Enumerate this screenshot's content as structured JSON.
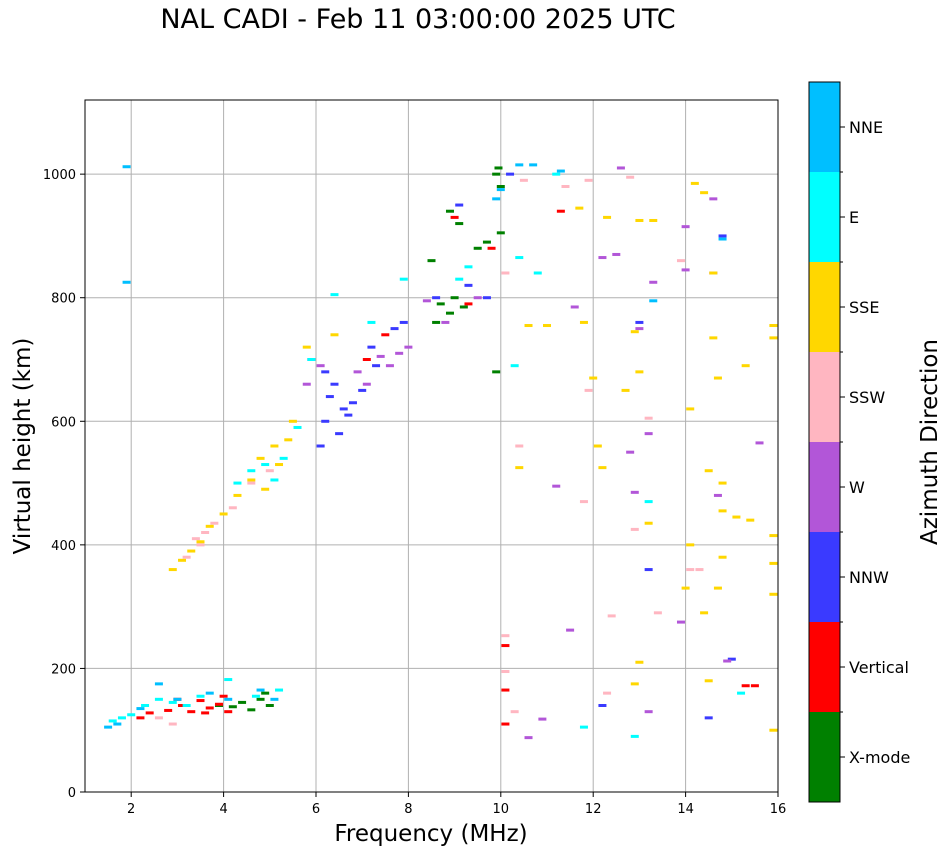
{
  "chart_data": {
    "type": "scatter",
    "title": "NAL CADI - Feb 11 03:00:00 2025 UTC",
    "xlabel": "Frequency (MHz)",
    "ylabel": "Virtual height (km)",
    "xlim": [
      1,
      16
    ],
    "ylim": [
      0,
      1120
    ],
    "xticks": [
      2,
      4,
      6,
      8,
      10,
      12,
      14,
      16
    ],
    "yticks": [
      0,
      200,
      400,
      600,
      800,
      1000
    ],
    "grid": true,
    "colorbar": {
      "label": "Azimuth Direction",
      "categories": [
        {
          "name": "X-mode",
          "color": "#008000"
        },
        {
          "name": "Vertical",
          "color": "#ff0000"
        },
        {
          "name": "NNW",
          "color": "#3a3aff"
        },
        {
          "name": "W",
          "color": "#b256d8"
        },
        {
          "name": "SSW",
          "color": "#ffb6c1"
        },
        {
          "name": "SSE",
          "color": "#ffd700"
        },
        {
          "name": "E",
          "color": "#00ffff"
        },
        {
          "name": "NNE",
          "color": "#00bfff"
        }
      ]
    },
    "series": [
      {
        "name": "X-mode",
        "points": [
          [
            3.9,
            140
          ],
          [
            4.2,
            138
          ],
          [
            4.4,
            145
          ],
          [
            4.6,
            133
          ],
          [
            4.8,
            150
          ],
          [
            5.0,
            140
          ],
          [
            4.9,
            160
          ],
          [
            8.7,
            790
          ],
          [
            8.9,
            775
          ],
          [
            9.0,
            800
          ],
          [
            9.2,
            785
          ],
          [
            8.6,
            760
          ],
          [
            9.5,
            880
          ],
          [
            8.9,
            940
          ],
          [
            9.1,
            920
          ],
          [
            8.5,
            860
          ],
          [
            9.9,
            1000
          ],
          [
            10.0,
            980
          ],
          [
            9.95,
            1010
          ],
          [
            10.0,
            905
          ],
          [
            9.9,
            680
          ],
          [
            9.7,
            890
          ]
        ]
      },
      {
        "name": "Vertical",
        "points": [
          [
            2.4,
            128
          ],
          [
            2.8,
            132
          ],
          [
            3.1,
            140
          ],
          [
            3.3,
            130
          ],
          [
            3.5,
            148
          ],
          [
            3.7,
            136
          ],
          [
            3.9,
            142
          ],
          [
            4.1,
            130
          ],
          [
            3.0,
            150
          ],
          [
            3.6,
            128
          ],
          [
            2.2,
            120
          ],
          [
            4.0,
            155
          ],
          [
            7.5,
            740
          ],
          [
            7.1,
            700
          ],
          [
            9.3,
            790
          ],
          [
            9.0,
            930
          ],
          [
            10.1,
            237
          ],
          [
            10.1,
            165
          ],
          [
            10.1,
            110
          ],
          [
            15.3,
            172
          ],
          [
            15.5,
            172
          ],
          [
            11.3,
            940
          ],
          [
            9.8,
            880
          ]
        ]
      },
      {
        "name": "NNW",
        "points": [
          [
            6.2,
            600
          ],
          [
            6.3,
            640
          ],
          [
            6.5,
            580
          ],
          [
            6.4,
            660
          ],
          [
            6.6,
            620
          ],
          [
            6.2,
            680
          ],
          [
            6.8,
            630
          ],
          [
            6.1,
            560
          ],
          [
            7.0,
            650
          ],
          [
            7.3,
            690
          ],
          [
            7.2,
            720
          ],
          [
            7.7,
            750
          ],
          [
            7.9,
            760
          ],
          [
            8.6,
            800
          ],
          [
            9.3,
            820
          ],
          [
            10.2,
            1000
          ],
          [
            5.9,
            700
          ],
          [
            6.7,
            610
          ],
          [
            9.1,
            950
          ],
          [
            13.0,
            760
          ],
          [
            14.8,
            900
          ],
          [
            13.2,
            360
          ],
          [
            14.5,
            120
          ],
          [
            12.2,
            140
          ],
          [
            15.0,
            215
          ],
          [
            9.7,
            800
          ]
        ]
      },
      {
        "name": "W",
        "points": [
          [
            5.8,
            660
          ],
          [
            6.1,
            690
          ],
          [
            6.9,
            680
          ],
          [
            7.1,
            660
          ],
          [
            7.4,
            705
          ],
          [
            7.6,
            690
          ],
          [
            7.8,
            710
          ],
          [
            8.0,
            720
          ],
          [
            8.4,
            795
          ],
          [
            8.8,
            760
          ],
          [
            9.5,
            800
          ],
          [
            12.6,
            1010
          ],
          [
            12.5,
            870
          ],
          [
            13.0,
            750
          ],
          [
            14.0,
            915
          ],
          [
            14.0,
            845
          ],
          [
            14.6,
            960
          ],
          [
            14.6,
            840
          ],
          [
            13.2,
            580
          ],
          [
            12.9,
            485
          ],
          [
            15.6,
            565
          ],
          [
            14.7,
            480
          ],
          [
            13.2,
            130
          ],
          [
            11.5,
            262
          ],
          [
            13.9,
            275
          ],
          [
            10.6,
            88
          ],
          [
            10.9,
            118
          ],
          [
            12.8,
            550
          ],
          [
            11.2,
            495
          ],
          [
            11.6,
            785
          ],
          [
            12.2,
            865
          ],
          [
            14.9,
            212
          ],
          [
            13.3,
            825
          ]
        ]
      },
      {
        "name": "SSW",
        "points": [
          [
            2.6,
            120
          ],
          [
            2.9,
            110
          ],
          [
            3.2,
            380
          ],
          [
            3.4,
            410
          ],
          [
            3.6,
            420
          ],
          [
            3.8,
            435
          ],
          [
            4.2,
            460
          ],
          [
            4.6,
            500
          ],
          [
            5.0,
            520
          ],
          [
            3.5,
            400
          ],
          [
            11.4,
            980
          ],
          [
            12.8,
            995
          ],
          [
            13.9,
            860
          ],
          [
            10.1,
            840
          ],
          [
            10.5,
            990
          ],
          [
            11.9,
            990
          ],
          [
            12.4,
            285
          ],
          [
            12.3,
            160
          ],
          [
            13.4,
            290
          ],
          [
            12.9,
            425
          ],
          [
            13.2,
            605
          ],
          [
            10.4,
            560
          ],
          [
            11.8,
            470
          ],
          [
            10.1,
            253
          ],
          [
            10.1,
            195
          ],
          [
            10.3,
            130
          ],
          [
            14.1,
            360
          ],
          [
            14.3,
            360
          ],
          [
            11.9,
            650
          ]
        ]
      },
      {
        "name": "SSE",
        "points": [
          [
            2.9,
            360
          ],
          [
            3.1,
            375
          ],
          [
            3.3,
            390
          ],
          [
            3.5,
            405
          ],
          [
            3.7,
            430
          ],
          [
            4.0,
            450
          ],
          [
            4.3,
            480
          ],
          [
            4.6,
            505
          ],
          [
            4.9,
            490
          ],
          [
            5.2,
            530
          ],
          [
            5.4,
            570
          ],
          [
            5.5,
            600
          ],
          [
            4.8,
            540
          ],
          [
            5.1,
            560
          ],
          [
            5.8,
            720
          ],
          [
            6.4,
            740
          ],
          [
            10.6,
            755
          ],
          [
            11.0,
            755
          ],
          [
            11.8,
            760
          ],
          [
            12.9,
            745
          ],
          [
            13.0,
            925
          ],
          [
            13.3,
            925
          ],
          [
            12.3,
            930
          ],
          [
            14.2,
            985
          ],
          [
            14.4,
            970
          ],
          [
            14.6,
            840
          ],
          [
            14.6,
            735
          ],
          [
            14.7,
            670
          ],
          [
            14.1,
            620
          ],
          [
            14.5,
            520
          ],
          [
            14.8,
            500
          ],
          [
            14.8,
            455
          ],
          [
            15.1,
            445
          ],
          [
            15.4,
            440
          ],
          [
            15.9,
            415
          ],
          [
            15.9,
            370
          ],
          [
            15.9,
            320
          ],
          [
            14.8,
            380
          ],
          [
            14.1,
            400
          ],
          [
            14.0,
            330
          ],
          [
            14.4,
            290
          ],
          [
            14.7,
            330
          ],
          [
            13.0,
            680
          ],
          [
            12.7,
            650
          ],
          [
            12.1,
            560
          ],
          [
            12.2,
            525
          ],
          [
            13.2,
            435
          ],
          [
            13.0,
            210
          ],
          [
            12.9,
            175
          ],
          [
            15.3,
            690
          ],
          [
            15.9,
            755
          ],
          [
            15.9,
            735
          ],
          [
            15.9,
            100
          ],
          [
            14.5,
            180
          ],
          [
            10.4,
            525
          ],
          [
            11.7,
            945
          ],
          [
            12.0,
            670
          ]
        ]
      },
      {
        "name": "E",
        "points": [
          [
            1.6,
            115
          ],
          [
            1.8,
            120
          ],
          [
            2.0,
            125
          ],
          [
            2.3,
            140
          ],
          [
            2.6,
            150
          ],
          [
            2.9,
            145
          ],
          [
            3.2,
            140
          ],
          [
            3.5,
            155
          ],
          [
            4.1,
            182
          ],
          [
            5.2,
            165
          ],
          [
            4.7,
            155
          ],
          [
            4.3,
            500
          ],
          [
            4.6,
            520
          ],
          [
            4.9,
            530
          ],
          [
            5.1,
            505
          ],
          [
            5.3,
            540
          ],
          [
            5.6,
            590
          ],
          [
            5.9,
            700
          ],
          [
            6.4,
            805
          ],
          [
            7.2,
            760
          ],
          [
            7.9,
            830
          ],
          [
            9.1,
            830
          ],
          [
            9.3,
            850
          ],
          [
            10.4,
            865
          ],
          [
            10.8,
            840
          ],
          [
            11.2,
            1000
          ],
          [
            13.2,
            470
          ],
          [
            15.2,
            160
          ],
          [
            12.9,
            90
          ],
          [
            11.8,
            105
          ],
          [
            10.3,
            690
          ]
        ]
      },
      {
        "name": "NNE",
        "points": [
          [
            1.5,
            105
          ],
          [
            1.7,
            110
          ],
          [
            2.2,
            135
          ],
          [
            2.6,
            175
          ],
          [
            3.0,
            150
          ],
          [
            3.7,
            160
          ],
          [
            4.1,
            150
          ],
          [
            4.8,
            165
          ],
          [
            5.1,
            150
          ],
          [
            1.9,
            1012
          ],
          [
            1.9,
            825
          ],
          [
            9.9,
            960
          ],
          [
            10.0,
            975
          ],
          [
            10.4,
            1015
          ],
          [
            10.7,
            1015
          ],
          [
            11.3,
            1005
          ],
          [
            14.8,
            895
          ],
          [
            13.3,
            795
          ]
        ]
      }
    ]
  }
}
